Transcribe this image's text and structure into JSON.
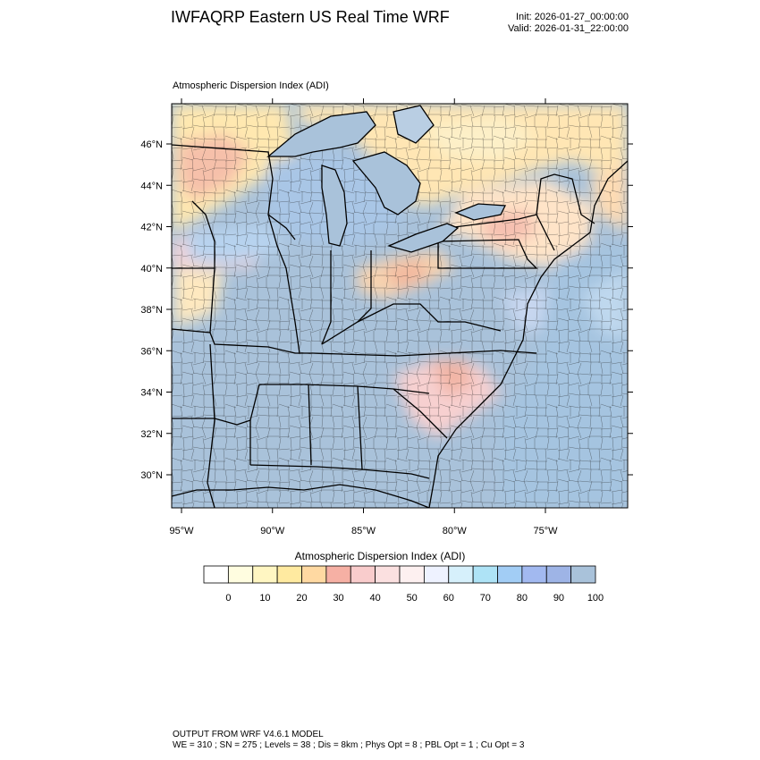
{
  "header": {
    "title": "IWFAQRP Eastern US Real Time WRF",
    "init": "Init: 2026-01-27_00:00:00",
    "valid": "Valid: 2026-01-31_22:00:00"
  },
  "map": {
    "variable_label": "Atmospheric Dispersion Index   (ADI)",
    "lat_ticks": [
      "30°N",
      "32°N",
      "34°N",
      "36°N",
      "38°N",
      "40°N",
      "42°N",
      "44°N",
      "46°N"
    ],
    "lon_ticks": [
      "95°W",
      "90°W",
      "85°W",
      "80°W",
      "75°W"
    ],
    "land_background_color": "#a9c2da",
    "water_color": "#a9c2da"
  },
  "colorbar": {
    "title": "Atmospheric Dispersion Index  (ADI)",
    "labels": [
      "0",
      "10",
      "20",
      "30",
      "40",
      "50",
      "60",
      "70",
      "80",
      "90",
      "100"
    ],
    "colors": [
      "#ffffff",
      "#fffde0",
      "#fff6c2",
      "#ffeaa0",
      "#ffd9a2",
      "#f6b0a4",
      "#f9cccc",
      "#fbe0e0",
      "#fdf0f0",
      "#eef2ff",
      "#d6f0fb",
      "#aee3f6",
      "#a2cdf5",
      "#a2b9f0",
      "#9eb4e6",
      "#a9c2da"
    ]
  },
  "footer": {
    "line1": "OUTPUT FROM WRF V4.6.1 MODEL",
    "line2": "WE = 310 ; SN = 275 ; Levels = 38 ; Dis = 8km ; Phys Opt = 8 ; PBL Opt = 1 ; Cu Opt = 3"
  }
}
